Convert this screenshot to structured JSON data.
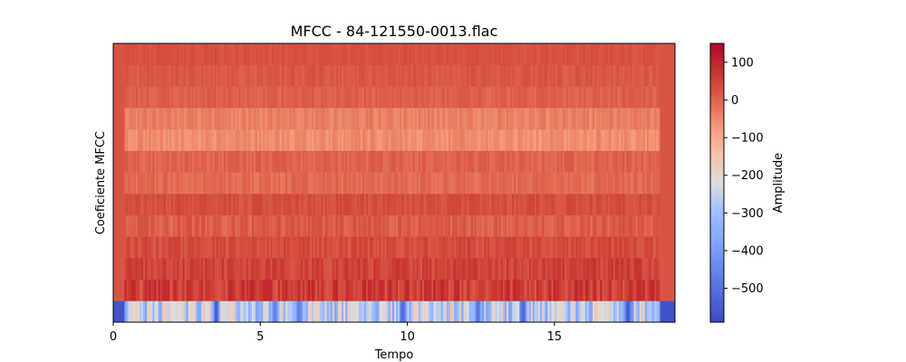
{
  "chart_data": {
    "type": "heatmap",
    "title": "MFCC - 84-121550-0013.flac",
    "xlabel": "Tempo",
    "ylabel": "Coeficiente MFCC",
    "xlim": [
      0,
      19.1
    ],
    "xticks": [
      0,
      5,
      10,
      15
    ],
    "xtick_labels": [
      "0",
      "5",
      "10",
      "15"
    ],
    "n_coefficients": 13,
    "duration_s": 19.1,
    "colormap": "coolwarm",
    "colorbar": {
      "label": "Amplitude",
      "range": [
        -590,
        150
      ],
      "ticks": [
        100,
        0,
        -100,
        -200,
        -300,
        -400,
        -500
      ],
      "tick_labels": [
        "100",
        "0",
        "−100",
        "−200",
        "−300",
        "−400",
        "−500"
      ]
    },
    "coefficient_mean_amplitude": [
      -270,
      60,
      50,
      35,
      10,
      30,
      -10,
      0,
      -55,
      -40,
      5,
      15,
      25
    ],
    "coefficient_variation": [
      120,
      45,
      30,
      25,
      25,
      20,
      18,
      18,
      20,
      18,
      15,
      15,
      12
    ],
    "leading_silence_s": 0.4,
    "trailing_silence_s": 0.5,
    "silence_c0_amplitude": -570,
    "silence_other_amplitude": 20,
    "dips_c0": [
      {
        "t": 3.5,
        "amplitude": -560
      },
      {
        "t": 5.5,
        "amplitude": -470
      },
      {
        "t": 6.3,
        "amplitude": -480
      },
      {
        "t": 9.85,
        "amplitude": -520
      },
      {
        "t": 12.4,
        "amplitude": -500
      },
      {
        "t": 13.95,
        "amplitude": -540
      },
      {
        "t": 17.5,
        "amplitude": -560
      },
      {
        "t": 18.9,
        "amplitude": -580
      }
    ],
    "peaks_c0": [
      {
        "t": 0.8,
        "amplitude": -170
      },
      {
        "t": 2.2,
        "amplitude": -190
      },
      {
        "t": 4.0,
        "amplitude": -180
      },
      {
        "t": 6.9,
        "amplitude": -170
      },
      {
        "t": 8.2,
        "amplitude": -200
      },
      {
        "t": 10.6,
        "amplitude": -180
      },
      {
        "t": 15.2,
        "amplitude": -190
      },
      {
        "t": 16.6,
        "amplitude": -200
      }
    ]
  }
}
